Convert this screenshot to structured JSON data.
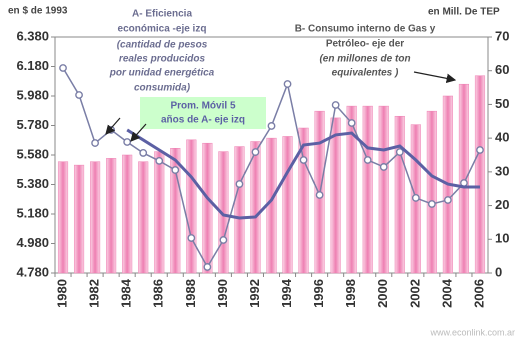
{
  "chart_data": {
    "type": "bar",
    "left_unit": "en  $  de 1993",
    "right_unit": "en  Mill. De TEP",
    "annotations": {
      "a": [
        "A- Eficiencia",
        "económica -eje izq",
        "(cantidad de pesos",
        "reales producidos",
        "por unidad energética",
        "consumida)"
      ],
      "b": [
        "B- Consumo interno de Gas y",
        "Petróleo- eje der",
        "(en millones de ton",
        "equivalentes )"
      ],
      "ma": [
        "Prom. Móvil 5",
        "años de A- eje izq"
      ]
    },
    "source": "www.econlink.com.ar",
    "categories": [
      "1980",
      null,
      "1982",
      null,
      "1984",
      null,
      "1986",
      null,
      "1988",
      null,
      "1990",
      null,
      "1992",
      null,
      "1994",
      null,
      "1996",
      null,
      "1998",
      null,
      "2000",
      null,
      "2002",
      null,
      "2004",
      null,
      "2006"
    ],
    "series": [
      {
        "type": "bar",
        "axis": "y2",
        "color": "#ee7fb2",
        "values": [
          33,
          32,
          33,
          34,
          35,
          33,
          36,
          37,
          39.5,
          38.5,
          36,
          37.5,
          39,
          40,
          40.5,
          43,
          48,
          46,
          49.5,
          49.5,
          49.5,
          46.5,
          44,
          48,
          52.5,
          56,
          58.5
        ]
      },
      {
        "type": "line",
        "color": "#7a7ea6",
        "markers": true,
        "values": [
          6170,
          5987,
          5661,
          5750,
          5668,
          5594,
          5540,
          5478,
          5017,
          4821,
          5004,
          5383,
          5600,
          5777,
          6061,
          5546,
          5309,
          5919,
          5797,
          5546,
          5499,
          5600,
          5289,
          5248,
          5275,
          5390,
          5614
        ]
      },
      {
        "type": "line",
        "color": "#5c60a4",
        "markers": false,
        "values": [
          null,
          null,
          null,
          null,
          5750,
          5682,
          5614,
          5546,
          5431,
          5289,
          5173,
          5153,
          5160,
          5275,
          5465,
          5648,
          5661,
          5716,
          5729,
          5628,
          5614,
          5641,
          5546,
          5438,
          5383,
          5363,
          5363
        ]
      }
    ],
    "ylim": [
      4780,
      6380
    ],
    "yticks": [
      {
        "value": 4780,
        "label": "4.780"
      },
      {
        "value": 4980,
        "label": "4.980"
      },
      {
        "value": 5180,
        "label": "5.180"
      },
      {
        "value": 5380,
        "label": "5.380"
      },
      {
        "value": 5580,
        "label": "5.580"
      },
      {
        "value": 5780,
        "label": "5.780"
      },
      {
        "value": 5980,
        "label": "5.980"
      },
      {
        "value": 6180,
        "label": "6.180"
      },
      {
        "value": 6380,
        "label": "6.380"
      }
    ],
    "y2lim": [
      0,
      70
    ],
    "y2ticks": [
      0,
      10,
      20,
      30,
      40,
      50,
      60,
      70
    ]
  }
}
